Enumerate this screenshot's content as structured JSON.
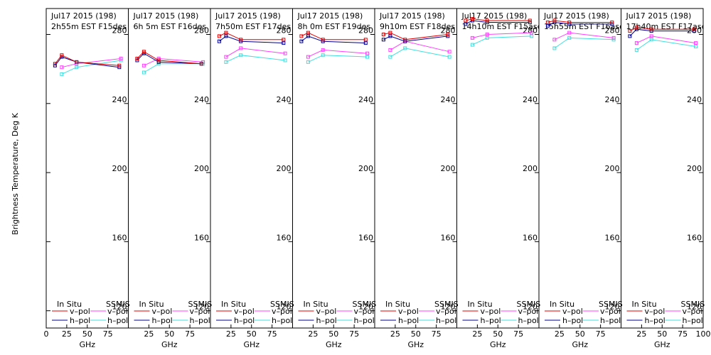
{
  "chart_data": {
    "type": "line",
    "ylabel": "Brightness Temperature, Deg K",
    "xlabel": "GHz",
    "xlim": [
      0,
      100
    ],
    "ylim": [
      110,
      295
    ],
    "yticks": [
      120,
      160,
      200,
      240,
      280
    ],
    "xticks": [
      0,
      25,
      50,
      75,
      100
    ],
    "xtick_labels": [
      "0",
      "25",
      "50",
      "75",
      "100"
    ],
    "legend": {
      "in_situ_title": "In Situ",
      "ssmis_title": "SSMIS",
      "entries": [
        {
          "label": "v–pol",
          "group": "in_situ",
          "color": "#e00000"
        },
        {
          "label": "h–pol",
          "group": "in_situ",
          "color": "#000090"
        },
        {
          "label": "v–pol",
          "group": "ssmis",
          "color": "#ff40ff"
        },
        {
          "label": "h–pol",
          "group": "ssmis",
          "color": "#40e0e0"
        }
      ]
    },
    "colors": {
      "insitu_v": "#e00000",
      "insitu_h": "#000090",
      "ssmis_v": "#ff40ff",
      "ssmis_h": "#40e0e0"
    },
    "panels": [
      {
        "date": "Jul17 2015 (198)",
        "time": "2h55m  EST  F15des",
        "x": [
          10.7,
          19,
          37,
          89
        ],
        "insitu_v": [
          263,
          268,
          264,
          262
        ],
        "insitu_h": [
          262,
          267,
          264,
          261
        ],
        "ssmis_x": [
          19,
          37,
          91
        ],
        "ssmis_v": [
          261,
          263,
          266
        ],
        "ssmis_h": [
          257,
          261,
          265
        ]
      },
      {
        "date": "Jul17 2015 (198)",
        "time": "6h  5m  EST  F16des",
        "x": [
          10.7,
          19,
          37,
          89
        ],
        "insitu_v": [
          266,
          270,
          265,
          263
        ],
        "insitu_h": [
          265,
          269,
          264,
          263
        ],
        "ssmis_x": [
          19,
          37,
          91
        ],
        "ssmis_v": [
          262,
          266,
          264
        ],
        "ssmis_h": [
          258,
          263,
          263
        ]
      },
      {
        "date": "Jul17 2015 (198)",
        "time": "7h50m  EST  F17des",
        "x": [
          10.7,
          19,
          37,
          89
        ],
        "insitu_v": [
          279,
          281,
          277,
          277
        ],
        "insitu_h": [
          276,
          279,
          276,
          275
        ],
        "ssmis_x": [
          19,
          37,
          91
        ],
        "ssmis_v": [
          267,
          272,
          269
        ],
        "ssmis_h": [
          264,
          268,
          265
        ]
      },
      {
        "date": "Jul17 2015 (198)",
        "time": "8h  0m  EST  F19des",
        "x": [
          10.7,
          19,
          37,
          89
        ],
        "insitu_v": [
          279,
          281,
          277,
          277
        ],
        "insitu_h": [
          276,
          279,
          276,
          275
        ],
        "ssmis_x": [
          19,
          37,
          91
        ],
        "ssmis_v": [
          267,
          271,
          269
        ],
        "ssmis_h": [
          264,
          268,
          267
        ]
      },
      {
        "date": "Jul17 2015 (198)",
        "time": "9h10m  EST  F18des",
        "x": [
          10.7,
          19,
          37,
          89
        ],
        "insitu_v": [
          280,
          281,
          277,
          280
        ],
        "insitu_h": [
          277,
          279,
          276,
          279
        ],
        "ssmis_x": [
          19,
          37,
          91
        ],
        "ssmis_v": [
          271,
          276,
          270
        ],
        "ssmis_h": [
          267,
          272,
          267
        ]
      },
      {
        "date": "Jul17 2015 (198)",
        "time": "14h10m  EST  F15asc",
        "x": [
          10.7,
          19,
          37,
          89
        ],
        "insitu_v": [
          288,
          289,
          288,
          288
        ],
        "insitu_h": [
          286,
          288,
          287,
          287
        ],
        "ssmis_x": [
          19,
          37,
          91
        ],
        "ssmis_v": [
          278,
          280,
          281
        ],
        "ssmis_h": [
          274,
          278,
          279
        ]
      },
      {
        "date": "Jul17 2015 (198)",
        "time": "15h55m  EST  F16asc",
        "x": [
          10.7,
          19,
          37,
          89
        ],
        "insitu_v": [
          287,
          288,
          287,
          287
        ],
        "insitu_h": [
          285,
          287,
          286,
          286
        ],
        "ssmis_x": [
          19,
          37,
          91
        ],
        "ssmis_v": [
          277,
          281,
          278
        ],
        "ssmis_h": [
          272,
          278,
          277
        ]
      },
      {
        "date": "Jul17 2015 (198)",
        "time": "17h40m  EST  F17asc",
        "x": [
          10.7,
          19,
          37,
          89
        ],
        "insitu_v": [
          282,
          284,
          283,
          283
        ],
        "insitu_h": [
          279,
          283,
          282,
          282
        ],
        "ssmis_x": [
          19,
          37,
          91
        ],
        "ssmis_v": [
          275,
          279,
          275
        ],
        "ssmis_h": [
          271,
          277,
          273
        ]
      }
    ]
  }
}
